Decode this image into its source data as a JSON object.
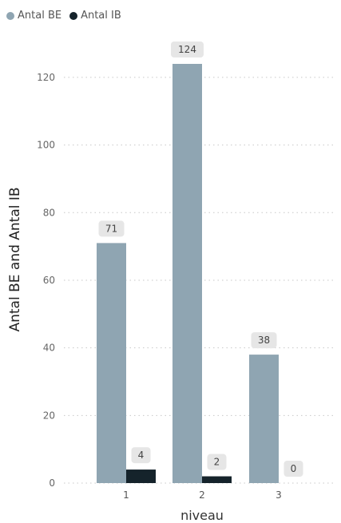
{
  "chart_data": {
    "type": "bar",
    "categories": [
      "1",
      "2",
      "3"
    ],
    "series": [
      {
        "name": "Antal BE",
        "values": [
          71,
          124,
          38
        ],
        "color": "#8FA5B2"
      },
      {
        "name": "Antal IB",
        "values": [
          4,
          2,
          0
        ],
        "color": "#15232B"
      }
    ],
    "xlabel": "niveau",
    "ylabel": "Antal BE and Antal IB",
    "ylim": [
      0,
      124
    ],
    "yticks": [
      0,
      20,
      40,
      60,
      80,
      100,
      120
    ],
    "grid": true,
    "legend_position": "top-left",
    "data_labels": true
  }
}
